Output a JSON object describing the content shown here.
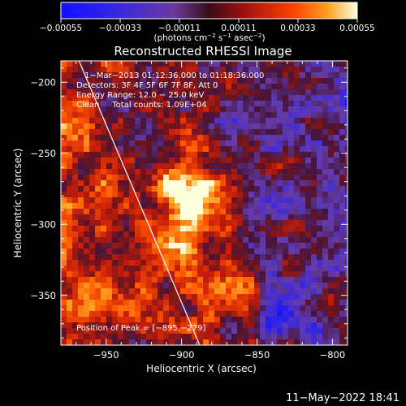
{
  "chart_data": {
    "type": "heatmap",
    "title": "Reconstructed RHESSI Image",
    "xlabel": "Heliocentric X (arcsec)",
    "ylabel": "Heliocentric Y (arcsec)",
    "xlim": [
      -980,
      -790
    ],
    "ylim": [
      -385,
      -185
    ],
    "x_ticks": [
      -950,
      -900,
      -850,
      -800
    ],
    "x_tick_labels": [
      "−950",
      "−900",
      "−850",
      "−800"
    ],
    "y_ticks": [
      -200,
      -250,
      -300,
      -350
    ],
    "y_tick_labels": [
      "−200",
      "−250",
      "−300",
      "−350"
    ],
    "colorbar": {
      "min": -0.00055,
      "max": 0.00055,
      "ticks": [
        -0.00055,
        -0.00033,
        -0.00011,
        0.00011,
        0.00033,
        0.00055
      ],
      "tick_labels": [
        "−0.00055",
        "−0.00033",
        "−0.00011",
        "0.00011",
        "0.00033",
        "0.00055"
      ],
      "unit_prefix": "(photons cm",
      "unit_exp1": "−2",
      "unit_mid": " s",
      "unit_exp2": "−1",
      "unit_mid2": " asec",
      "unit_exp3": "−2",
      "unit_suffix": ")"
    },
    "peak": {
      "x": -895,
      "y": -279
    },
    "limb_line": {
      "x": [
        -968,
        -888
      ],
      "y": [
        -185,
        -385
      ]
    },
    "annotations": [
      "1−Mar−2013 01:12:36.000 to 01:18:36.000",
      "Detectors: 3F 4F 5F 6F 7F 8F, Att 0",
      "Energy Range: 12.0 − 25.0 keV",
      "Clean     Total counts: 1.09E+04"
    ],
    "peak_label": "Position of Peak = [−895,−279]"
  },
  "colors": {
    "background": "#000000",
    "axes": "#ffffff",
    "low": "#1a1aff",
    "mid_low": "#7a3aa8",
    "mid": "#601838",
    "high": "#ff6a00",
    "max": "#ffffd0"
  },
  "footer": {
    "timestamp": "11−May−2022 18:41"
  }
}
